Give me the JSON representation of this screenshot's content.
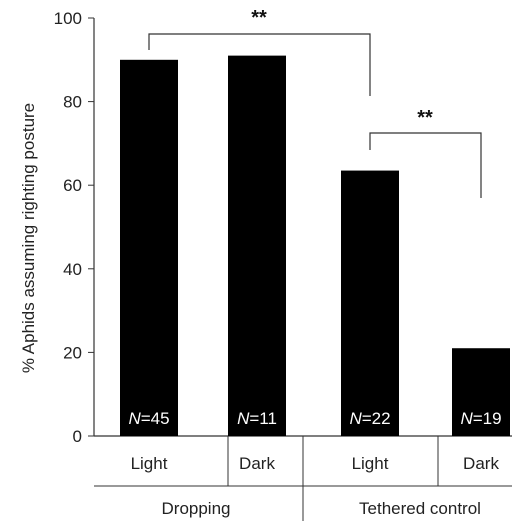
{
  "chart_data": {
    "type": "bar",
    "title": "",
    "ylabel": "% Aphids assuming righting posture",
    "ylim": [
      0,
      100
    ],
    "yticks": [
      "0",
      "20",
      "40",
      "60",
      "80",
      "100"
    ],
    "categories": [
      "Light",
      "Dark",
      "Light",
      "Dark"
    ],
    "groups": [
      "Dropping",
      "Tethered control"
    ],
    "values": [
      90,
      91,
      63.5,
      21
    ],
    "n_labels": [
      {
        "prefix": "N",
        "value": "=45"
      },
      {
        "prefix": "N",
        "value": "=11"
      },
      {
        "prefix": "N",
        "value": "=22"
      },
      {
        "prefix": "N",
        "value": "=19"
      }
    ],
    "significance": [
      "**",
      "**"
    ],
    "colors": {
      "bar": "#000000",
      "n_label": "#ffffff",
      "axis": "#333333"
    }
  }
}
